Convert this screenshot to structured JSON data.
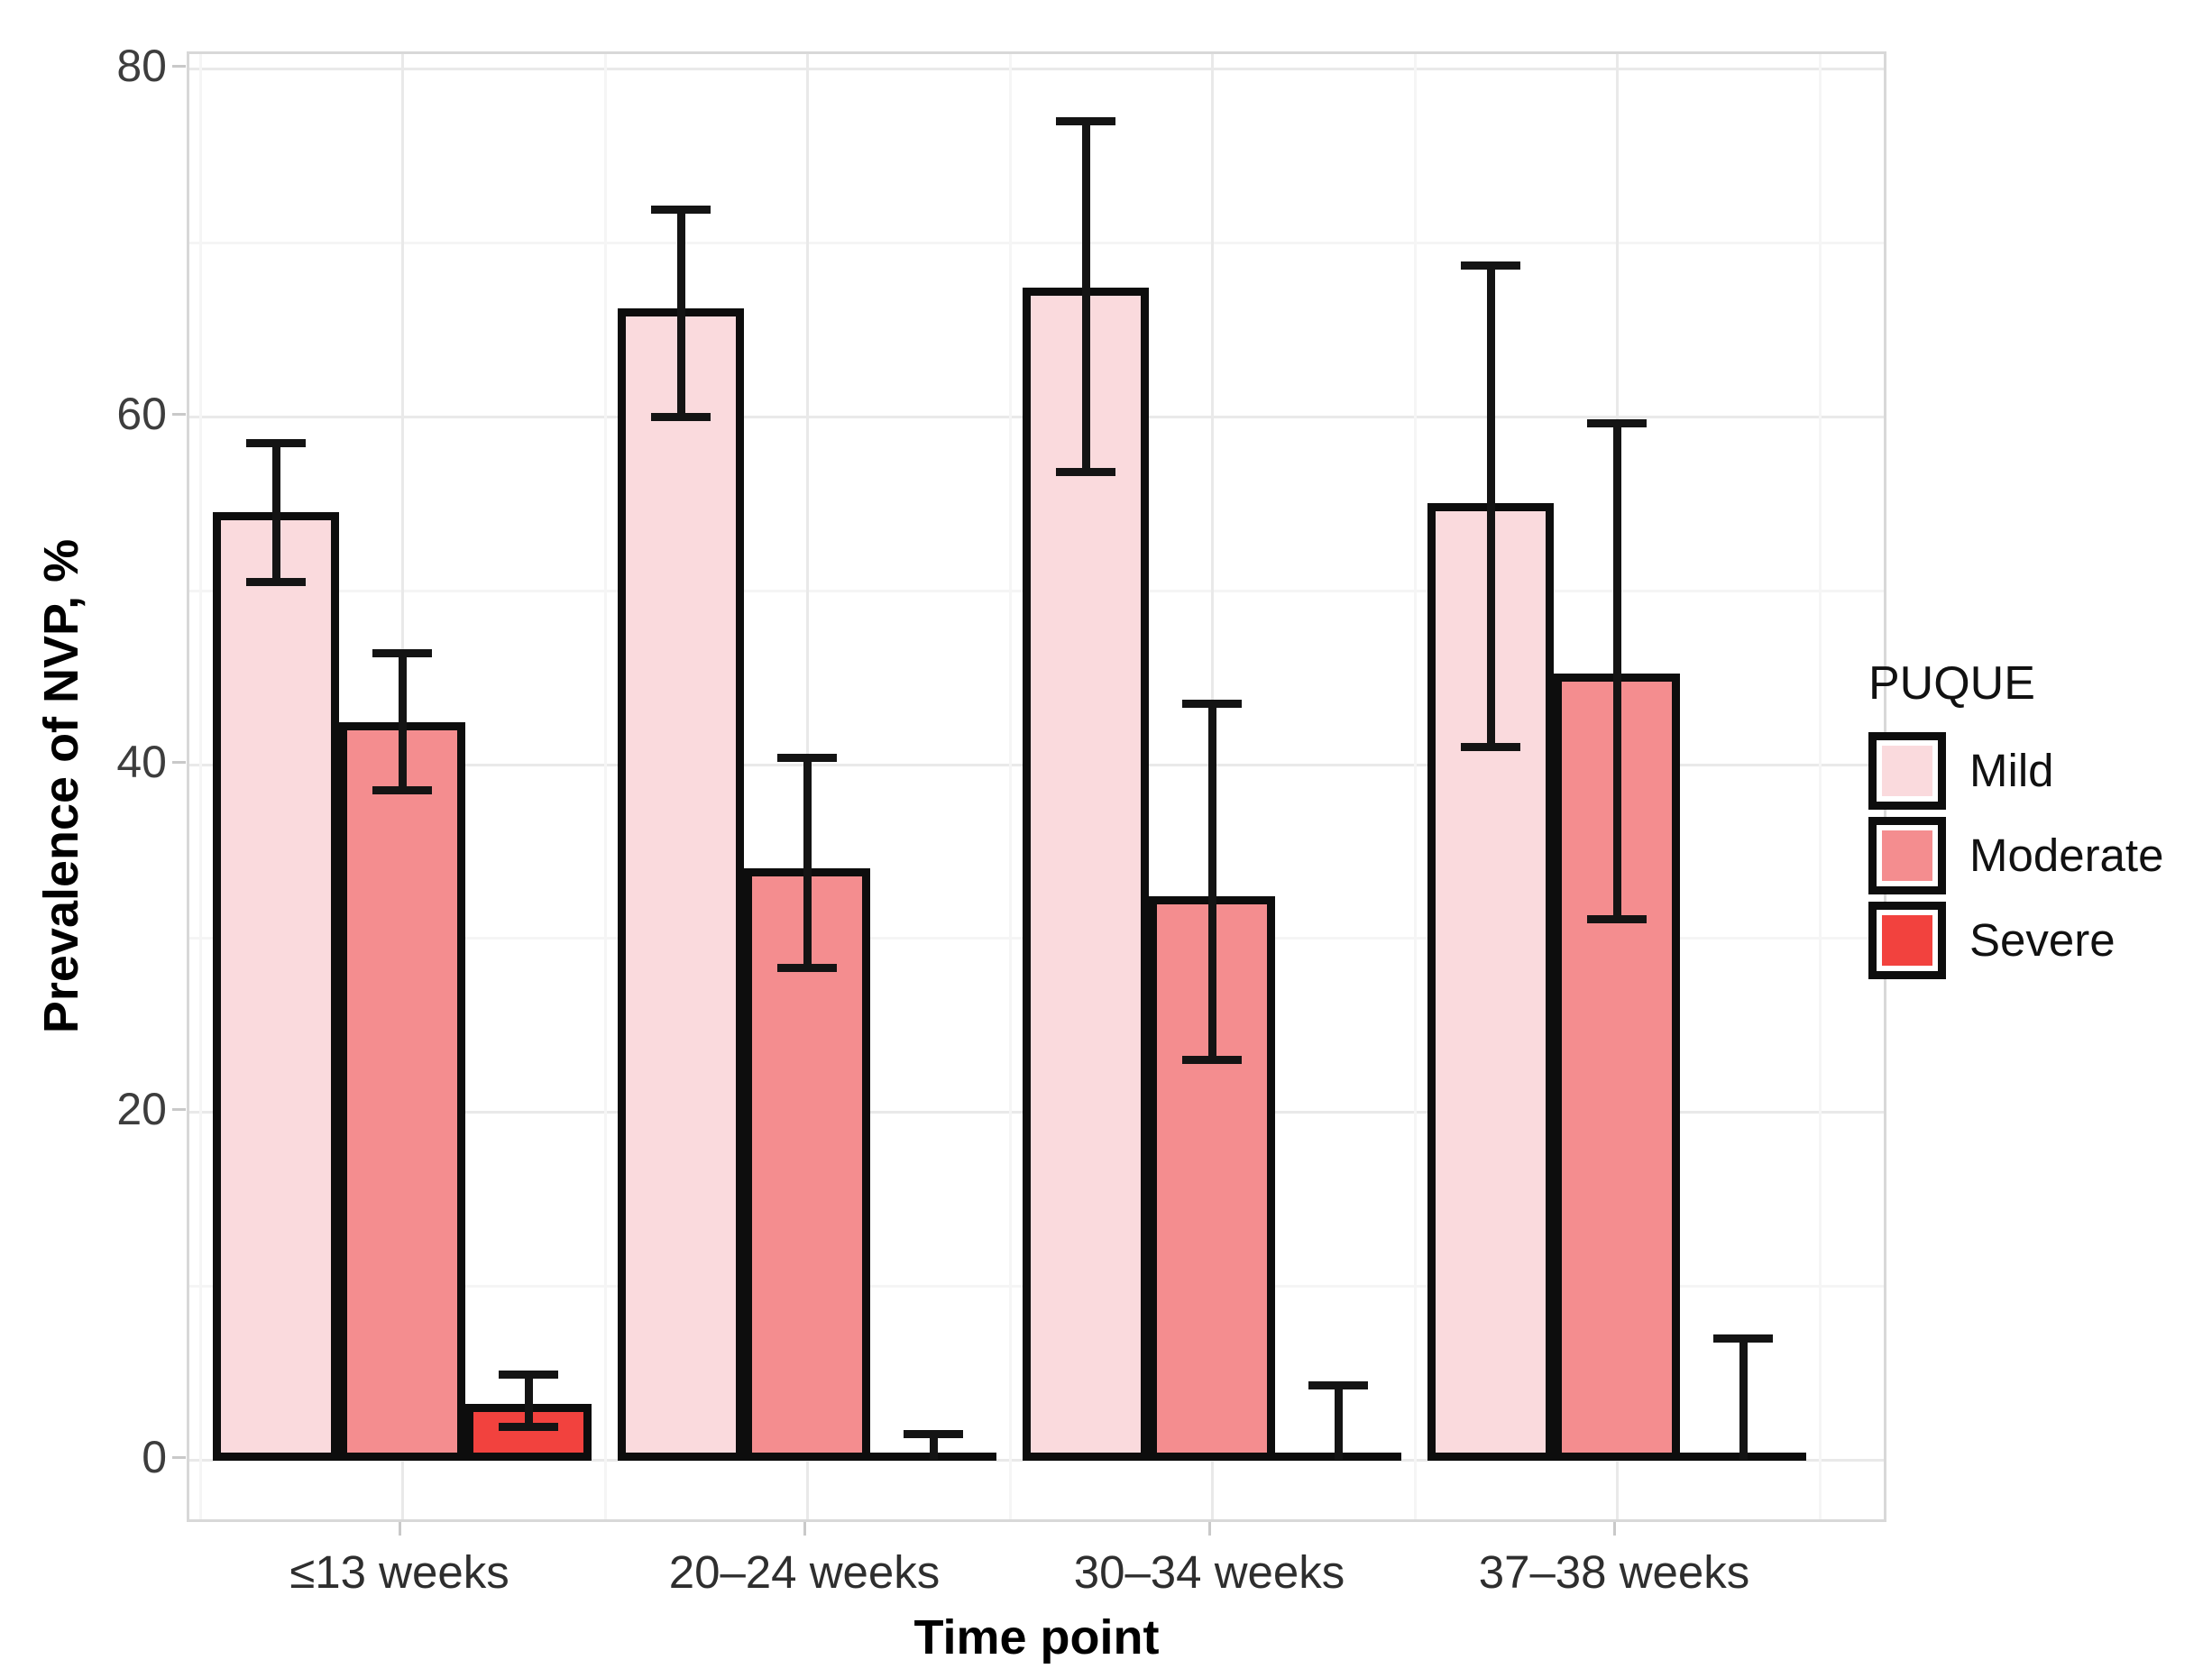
{
  "chart_data": {
    "type": "bar",
    "title": "",
    "xlabel": "Time point",
    "ylabel": "Prevalence of NVP, %",
    "ylim": [
      0,
      80
    ],
    "yticks": [
      0,
      20,
      40,
      60,
      80
    ],
    "grid": "on",
    "error_bars": true,
    "legend_title": "PUQUE",
    "legend_position": "right",
    "categories": [
      "≤13 weeks",
      "20–24 weeks",
      "30–34 weeks",
      "37–38 weeks"
    ],
    "series": [
      {
        "name": "Mild",
        "color": "#fadadd",
        "values": [
          54.5,
          66.2,
          67.4,
          55.0
        ],
        "ci_low": [
          50.5,
          60.0,
          56.8,
          41.0
        ],
        "ci_high": [
          58.5,
          71.9,
          77.0,
          68.7
        ]
      },
      {
        "name": "Moderate",
        "color": "#f48d8f",
        "values": [
          42.4,
          34.0,
          32.4,
          45.2
        ],
        "ci_low": [
          38.5,
          28.3,
          23.0,
          31.1
        ],
        "ci_high": [
          46.4,
          40.4,
          43.5,
          59.6
        ]
      },
      {
        "name": "Severe",
        "color": "#f2423e",
        "values": [
          3.2,
          0,
          0,
          0
        ],
        "ci_low": [
          1.9,
          0,
          0,
          0
        ],
        "ci_high": [
          4.9,
          1.5,
          4.3,
          7.0
        ]
      }
    ]
  },
  "colors": {
    "bar_stroke": "#0d0d0d",
    "grid_major": "#e9e9e9",
    "grid_minor": "#f5f5f5",
    "panel_border": "#d8d8d8",
    "tick_label": "#3d3d3d",
    "axis_title": "#000000"
  }
}
